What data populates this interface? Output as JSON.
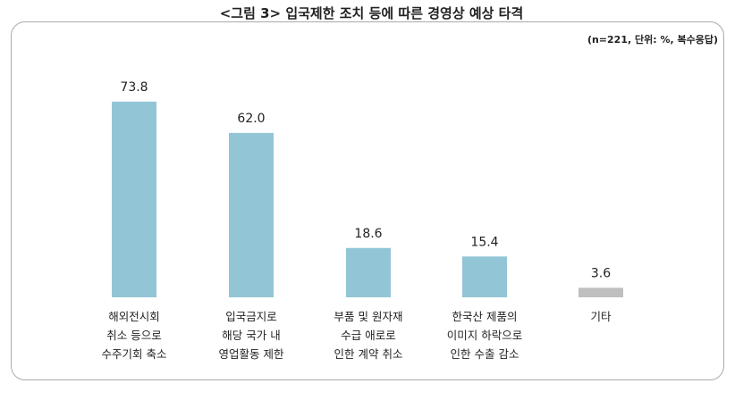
{
  "chart_data": {
    "type": "bar",
    "title": "<그림 3> 입국제한 조치 등에 따른 경영상 예상 타격",
    "subtitle": "(n=221, 단위: %, 복수응답)",
    "categories": [
      "해외전시회\n취소 등으로\n수주기회 축소",
      "입국금지로\n해당 국가 내\n영업활동 제한",
      "부품 및 원자재\n수급 애로로\n인한 계약 취소",
      "한국산 제품의\n이미지 하락으로\n인한 수출 감소",
      "기타"
    ],
    "values": [
      73.8,
      62.0,
      18.6,
      15.4,
      3.6
    ],
    "value_labels": [
      "73.8",
      "62.0",
      "18.6",
      "15.4",
      "3.6"
    ],
    "colors": [
      "#92c5d6",
      "#92c5d6",
      "#92c5d6",
      "#92c5d6",
      "#bfbfbf"
    ],
    "ylim": [
      0,
      80
    ],
    "grid": false
  }
}
